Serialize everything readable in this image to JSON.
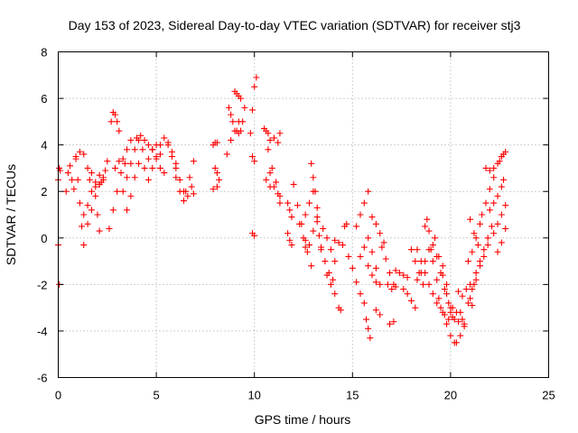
{
  "chart_data": {
    "type": "scatter",
    "title": "Day 153 of 2023, Sidereal Day-to-day VTEC variation (SDTVAR) for receiver stj3",
    "xlabel": "GPS time / hours",
    "ylabel": "SDTVAR / TECUs",
    "xlim": [
      0,
      25
    ],
    "ylim": [
      -6,
      8
    ],
    "xticks": [
      0,
      5,
      10,
      15,
      20,
      25
    ],
    "yticks": [
      -6,
      -4,
      -2,
      0,
      2,
      4,
      6,
      8
    ],
    "grid": true,
    "marker": "+",
    "color": "#ff0000",
    "series": [
      {
        "name": "seg1",
        "x": [
          0.0,
          0.05,
          0.1
        ],
        "y": [
          2.5,
          3.0,
          2.9
        ]
      },
      {
        "name": "seg2",
        "x": [
          0.0,
          0.05
        ],
        "y": [
          -0.3,
          -2.0
        ]
      },
      {
        "name": "seg3",
        "x": [
          0.4,
          0.5,
          0.6,
          0.7,
          0.8
        ],
        "y": [
          2.0,
          2.8,
          3.1,
          2.5,
          2.1
        ]
      },
      {
        "name": "seg4",
        "x": [
          0.9,
          1.0,
          1.1,
          1.2,
          1.3
        ],
        "y": [
          3.4,
          2.5,
          1.5,
          0.5,
          -0.3
        ]
      },
      {
        "name": "seg5",
        "x": [
          0.9,
          1.1,
          1.3,
          1.5,
          1.6
        ],
        "y": [
          3.5,
          3.7,
          3.6,
          3.0,
          2.5
        ]
      },
      {
        "name": "seg6",
        "x": [
          1.3,
          1.5,
          1.7,
          1.9,
          2.1
        ],
        "y": [
          1.0,
          1.4,
          2.0,
          2.4,
          2.7
        ]
      },
      {
        "name": "seg7",
        "x": [
          1.5,
          1.7,
          1.9,
          2.1,
          2.3
        ],
        "y": [
          0.6,
          1.2,
          1.8,
          2.3,
          2.6
        ]
      },
      {
        "name": "seg8",
        "x": [
          1.7,
          1.9,
          2.0,
          2.1
        ],
        "y": [
          2.8,
          2.2,
          1.0,
          0.3
        ]
      },
      {
        "name": "seg9",
        "x": [
          2.1,
          2.2,
          2.3,
          2.4,
          2.5
        ],
        "y": [
          2.3,
          2.4,
          2.5,
          2.9,
          3.3
        ]
      },
      {
        "name": "seg10",
        "x": [
          2.7,
          2.8,
          2.9,
          3.0,
          3.1
        ],
        "y": [
          5.0,
          5.4,
          5.3,
          5.0,
          4.6
        ]
      },
      {
        "name": "seg11",
        "x": [
          2.6,
          2.8,
          3.0,
          3.2,
          3.4
        ],
        "y": [
          0.4,
          1.2,
          2.0,
          2.8,
          3.2
        ]
      },
      {
        "name": "seg12",
        "x": [
          2.9,
          3.1,
          3.3,
          3.5,
          3.7
        ],
        "y": [
          3.0,
          3.3,
          3.4,
          3.8,
          4.2
        ]
      },
      {
        "name": "seg13",
        "x": [
          3.3,
          3.5,
          3.7,
          3.9,
          4.1
        ],
        "y": [
          2.0,
          2.6,
          3.2,
          3.8,
          4.2
        ]
      },
      {
        "name": "seg14",
        "x": [
          3.5,
          3.7,
          3.9,
          4.1,
          4.3
        ],
        "y": [
          1.2,
          1.8,
          2.6,
          3.2,
          3.8
        ]
      },
      {
        "name": "seg15",
        "x": [
          4.0,
          4.2,
          4.4,
          4.6,
          4.8,
          5.0
        ],
        "y": [
          4.3,
          4.4,
          4.2,
          4.0,
          3.8,
          3.5
        ]
      },
      {
        "name": "seg16",
        "x": [
          4.4,
          4.6,
          4.8,
          5.0,
          5.2
        ],
        "y": [
          3.0,
          3.4,
          3.8,
          4.0,
          3.6
        ]
      },
      {
        "name": "seg17",
        "x": [
          4.6,
          4.8,
          5.0,
          5.2,
          5.4
        ],
        "y": [
          2.5,
          3.0,
          3.4,
          3.0,
          2.8
        ]
      },
      {
        "name": "seg18",
        "x": [
          5.2,
          5.4,
          5.6,
          5.8,
          6.0
        ],
        "y": [
          4.0,
          4.3,
          4.1,
          3.5,
          3.0
        ]
      },
      {
        "name": "seg19",
        "x": [
          5.6,
          5.8,
          6.0,
          6.2,
          6.4
        ],
        "y": [
          4.0,
          3.7,
          3.2,
          2.5,
          2.0
        ]
      },
      {
        "name": "seg20",
        "x": [
          6.0,
          6.2,
          6.4,
          6.6
        ],
        "y": [
          2.6,
          2.0,
          1.6,
          1.8
        ]
      },
      {
        "name": "seg21",
        "x": [
          6.5,
          6.7,
          6.9
        ],
        "y": [
          2.0,
          2.6,
          3.3
        ]
      },
      {
        "name": "seg22",
        "x": [
          6.8,
          6.9
        ],
        "y": [
          2.2,
          1.9
        ]
      },
      {
        "name": "seg23",
        "x": [
          7.9,
          8.1
        ],
        "y": [
          2.1,
          2.2
        ]
      },
      {
        "name": "seg24",
        "x": [
          7.9,
          8.0,
          8.1
        ],
        "y": [
          4.0,
          4.1,
          4.1
        ]
      },
      {
        "name": "seg25",
        "x": [
          8.0,
          8.1,
          8.2
        ],
        "y": [
          3.0,
          2.8,
          2.5
        ]
      },
      {
        "name": "seg26",
        "x": [
          8.6,
          8.8,
          9.0,
          9.2
        ],
        "y": [
          3.6,
          4.2,
          4.6,
          5.0
        ]
      },
      {
        "name": "seg27",
        "x": [
          8.7,
          8.8,
          8.9
        ],
        "y": [
          5.6,
          5.3,
          5.0
        ]
      },
      {
        "name": "seg28",
        "x": [
          9.0,
          9.1,
          9.2,
          9.3
        ],
        "y": [
          6.3,
          6.2,
          6.1,
          6.0
        ]
      },
      {
        "name": "seg29",
        "x": [
          9.1,
          9.2,
          9.3,
          9.4,
          9.5
        ],
        "y": [
          4.6,
          4.5,
          4.6,
          5.0,
          5.6
        ]
      },
      {
        "name": "seg30",
        "x": [
          9.8,
          9.9,
          10.0,
          10.1
        ],
        "y": [
          4.5,
          5.5,
          6.5,
          6.9
        ]
      },
      {
        "name": "seg31",
        "x": [
          9.9,
          10.0
        ],
        "y": [
          3.5,
          3.3
        ]
      },
      {
        "name": "seg32",
        "x": [
          9.9,
          10.0
        ],
        "y": [
          0.2,
          0.1
        ]
      },
      {
        "name": "seg33",
        "x": [
          10.5,
          10.6,
          10.7,
          10.8
        ],
        "y": [
          4.7,
          4.6,
          4.5,
          4.2
        ]
      },
      {
        "name": "seg34",
        "x": [
          10.7,
          10.9,
          11.1,
          11.3
        ],
        "y": [
          3.8,
          3.0,
          2.4,
          1.8
        ]
      },
      {
        "name": "seg35",
        "x": [
          10.8,
          11.0,
          11.2,
          11.3
        ],
        "y": [
          2.8,
          2.2,
          1.9,
          1.5
        ]
      },
      {
        "name": "seg36",
        "x": [
          10.6,
          10.8
        ],
        "y": [
          2.5,
          2.2
        ]
      },
      {
        "name": "seg37",
        "x": [
          11.0,
          11.2,
          11.3
        ],
        "y": [
          4.3,
          4.1,
          4.5
        ]
      },
      {
        "name": "seg38",
        "x": [
          11.7,
          11.8,
          11.9
        ],
        "y": [
          1.5,
          1.2,
          0.9
        ]
      },
      {
        "name": "seg39",
        "x": [
          11.7,
          11.8,
          11.9
        ],
        "y": [
          0.2,
          -0.1,
          -0.3
        ]
      },
      {
        "name": "seg40",
        "x": [
          12.0,
          12.2,
          12.4,
          12.6
        ],
        "y": [
          2.3,
          1.4,
          0.6,
          -0.1
        ]
      },
      {
        "name": "seg41",
        "x": [
          12.3,
          12.5,
          12.7,
          12.9
        ],
        "y": [
          0.6,
          0.0,
          -0.6,
          -1.2
        ]
      },
      {
        "name": "seg42",
        "x": [
          12.6,
          12.8,
          13.0
        ],
        "y": [
          1.0,
          1.5,
          2.0
        ]
      },
      {
        "name": "seg43",
        "x": [
          12.9,
          13.0,
          13.1,
          13.2
        ],
        "y": [
          3.2,
          2.6,
          2.0,
          1.3
        ]
      },
      {
        "name": "seg44",
        "x": [
          12.6,
          12.8,
          13.0,
          13.2
        ],
        "y": [
          -0.4,
          -0.3,
          0.3,
          0.9
        ]
      },
      {
        "name": "seg45",
        "x": [
          13.2,
          13.3,
          13.4
        ],
        "y": [
          0.7,
          0.1,
          -0.4
        ]
      },
      {
        "name": "seg46",
        "x": [
          13.4,
          13.6,
          13.8,
          14.0
        ],
        "y": [
          -0.5,
          -1.0,
          -1.5,
          -1.8
        ]
      },
      {
        "name": "seg47",
        "x": [
          13.5,
          13.7,
          13.9,
          14.1
        ],
        "y": [
          0.4,
          0.0,
          -0.5,
          -1.0
        ]
      },
      {
        "name": "seg48",
        "x": [
          13.7,
          13.9,
          14.1
        ],
        "y": [
          -1.6,
          -2.0,
          -2.4
        ]
      },
      {
        "name": "seg49",
        "x": [
          14.1,
          14.3,
          14.5
        ],
        "y": [
          -0.1,
          -0.2,
          -0.3
        ]
      },
      {
        "name": "seg50",
        "x": [
          14.3,
          14.4
        ],
        "y": [
          -3.0,
          -3.1
        ]
      },
      {
        "name": "seg51",
        "x": [
          14.6,
          14.7
        ],
        "y": [
          0.5,
          0.6
        ]
      },
      {
        "name": "seg52",
        "x": [
          14.8,
          15.0,
          15.2,
          15.4
        ],
        "y": [
          -0.8,
          -1.3,
          -1.9,
          -2.4
        ]
      },
      {
        "name": "seg53",
        "x": [
          15.2,
          15.4,
          15.6,
          15.8
        ],
        "y": [
          0.5,
          1.0,
          1.5,
          2.0
        ]
      },
      {
        "name": "seg54",
        "x": [
          15.4,
          15.6,
          15.8,
          16.0,
          16.2
        ],
        "y": [
          -0.8,
          -0.4,
          0.0,
          -0.6,
          -1.3
        ]
      },
      {
        "name": "seg55",
        "x": [
          15.6,
          15.7,
          15.8,
          15.9
        ],
        "y": [
          -2.8,
          -3.5,
          -3.9,
          -4.3
        ]
      },
      {
        "name": "seg56",
        "x": [
          15.8,
          16.0,
          16.2,
          16.4
        ],
        "y": [
          -1.2,
          -1.6,
          -1.9,
          -2.0
        ]
      },
      {
        "name": "seg57",
        "x": [
          16.0,
          16.2,
          16.4,
          16.6
        ],
        "y": [
          0.9,
          0.6,
          0.2,
          -0.2
        ]
      },
      {
        "name": "seg58",
        "x": [
          16.2,
          16.4
        ],
        "y": [
          -3.1,
          -3.3
        ]
      },
      {
        "name": "seg59",
        "x": [
          16.5,
          16.7,
          16.9,
          17.1
        ],
        "y": [
          -0.4,
          -0.9,
          -1.5,
          -2.0
        ]
      },
      {
        "name": "seg60",
        "x": [
          16.8,
          17.0,
          17.2
        ],
        "y": [
          -2.0,
          -2.2,
          -2.1
        ]
      },
      {
        "name": "seg61",
        "x": [
          16.9,
          17.1
        ],
        "y": [
          -3.7,
          -3.6
        ]
      },
      {
        "name": "seg62",
        "x": [
          17.2,
          17.4,
          17.6,
          17.8
        ],
        "y": [
          -1.4,
          -1.5,
          -1.6,
          -1.7
        ]
      },
      {
        "name": "seg63",
        "x": [
          17.6,
          17.8,
          18.0,
          18.2
        ],
        "y": [
          -2.2,
          -2.4,
          -2.7,
          -3.0
        ]
      },
      {
        "name": "seg64",
        "x": [
          18.0,
          18.2,
          18.4,
          18.6
        ],
        "y": [
          -0.5,
          -1.0,
          -1.5,
          -2.0
        ]
      },
      {
        "name": "seg65",
        "x": [
          18.3,
          18.5,
          18.7,
          18.9,
          19.1,
          19.3,
          19.5,
          19.7,
          19.9,
          20.1,
          20.3
        ],
        "y": [
          -0.5,
          -1.0,
          -1.5,
          -2.0,
          -2.4,
          -2.8,
          -3.0,
          -3.3,
          -3.5,
          -3.4,
          -3.2
        ]
      },
      {
        "name": "seg66",
        "x": [
          18.3,
          18.5,
          18.7,
          18.9,
          19.1,
          19.3,
          19.5,
          19.7,
          19.9,
          20.1
        ],
        "y": [
          -1.8,
          -1.5,
          -1.0,
          -0.5,
          -0.3,
          -0.8,
          -1.5,
          -2.2,
          -2.8,
          -3.0
        ]
      },
      {
        "name": "seg67",
        "x": [
          18.7,
          18.8,
          18.9,
          19.0,
          19.1,
          19.3
        ],
        "y": [
          0.5,
          0.8,
          0.3,
          -0.5,
          -1.0,
          -1.8
        ]
      },
      {
        "name": "seg68",
        "x": [
          19.2,
          19.4,
          19.6,
          19.8,
          20.0
        ],
        "y": [
          0.0,
          -0.8,
          -1.6,
          -2.4,
          -3.2
        ]
      },
      {
        "name": "seg69",
        "x": [
          19.4,
          19.6,
          19.8,
          20.0,
          20.2
        ],
        "y": [
          -2.6,
          -3.2,
          -3.7,
          -4.2,
          -4.5
        ]
      },
      {
        "name": "seg70",
        "x": [
          19.6,
          19.8,
          20.0,
          20.2,
          20.4
        ],
        "y": [
          -1.2,
          -2.0,
          -3.0,
          -3.5,
          -3.6
        ]
      },
      {
        "name": "seg71",
        "x": [
          20.3,
          20.5,
          20.7
        ],
        "y": [
          -4.5,
          -4.2,
          -3.8
        ]
      },
      {
        "name": "seg72",
        "x": [
          20.4,
          20.6,
          20.8,
          21.0
        ],
        "y": [
          -2.3,
          -2.5,
          -2.2,
          -2.0
        ]
      },
      {
        "name": "seg73",
        "x": [
          20.5,
          20.6,
          20.7
        ],
        "y": [
          -3.2,
          -3.5,
          -3.7
        ]
      },
      {
        "name": "seg74",
        "x": [
          20.9,
          21.0,
          21.1
        ],
        "y": [
          -2.8,
          -2.6,
          -2.9
        ]
      },
      {
        "name": "seg75",
        "x": [
          21.1,
          21.2,
          21.3
        ],
        "y": [
          -2.2,
          -2.0,
          -1.8
        ]
      },
      {
        "name": "seg76",
        "x": [
          20.9,
          21.1,
          21.3,
          21.5
        ],
        "y": [
          -1.0,
          -0.6,
          0.0,
          0.6
        ]
      },
      {
        "name": "seg77",
        "x": [
          21.0,
          21.2,
          21.4
        ],
        "y": [
          0.8,
          0.2,
          -0.3
        ]
      },
      {
        "name": "seg78",
        "x": [
          21.3,
          21.5,
          21.7,
          21.9
        ],
        "y": [
          -1.5,
          -1.0,
          -0.5,
          0.0
        ]
      },
      {
        "name": "seg79",
        "x": [
          21.5,
          21.7,
          21.9,
          22.1
        ],
        "y": [
          -1.2,
          -0.8,
          -0.3,
          0.5
        ]
      },
      {
        "name": "seg80",
        "x": [
          21.6,
          21.8,
          22.0,
          22.2
        ],
        "y": [
          1.0,
          1.5,
          2.1,
          2.6
        ]
      },
      {
        "name": "seg81",
        "x": [
          21.8,
          22.0,
          22.2,
          22.4,
          22.6
        ],
        "y": [
          3.0,
          2.9,
          3.0,
          3.2,
          3.5
        ]
      },
      {
        "name": "seg82",
        "x": [
          22.0,
          22.2,
          22.4,
          22.6,
          22.7
        ],
        "y": [
          1.2,
          1.5,
          1.8,
          2.2,
          2.5
        ]
      },
      {
        "name": "seg83",
        "x": [
          22.2,
          22.4,
          22.6,
          22.8
        ],
        "y": [
          0.2,
          0.6,
          1.0,
          1.4
        ]
      },
      {
        "name": "seg84",
        "x": [
          22.5,
          22.6,
          22.7,
          22.8
        ],
        "y": [
          3.3,
          3.5,
          3.6,
          3.7
        ]
      },
      {
        "name": "seg85",
        "x": [
          22.4,
          22.6,
          22.8
        ],
        "y": [
          -0.6,
          -0.2,
          0.4
        ]
      }
    ]
  }
}
